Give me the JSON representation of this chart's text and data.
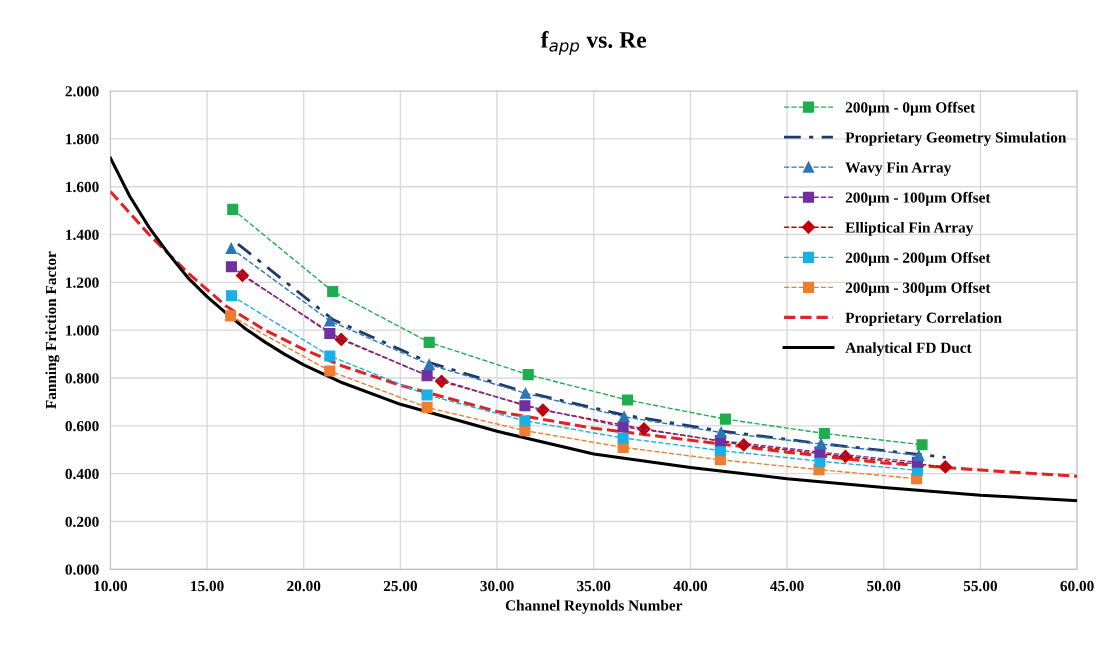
{
  "chart_data": {
    "type": "line",
    "title": "f$_{app}$ vs. Re",
    "xlabel": "Channel Reynolds Number",
    "ylabel": "Fanning Friction Factor",
    "xlim": [
      10,
      60
    ],
    "xticks": [
      {
        "value": 10,
        "label": "10.00"
      },
      {
        "value": 15,
        "label": "15.00"
      },
      {
        "value": 20,
        "label": "20.00"
      },
      {
        "value": 25,
        "label": "25.00"
      },
      {
        "value": 30,
        "label": "30.00"
      },
      {
        "value": 35,
        "label": "35.00"
      },
      {
        "value": 40,
        "label": "40.00"
      },
      {
        "value": 45,
        "label": "45.00"
      },
      {
        "value": 50,
        "label": "50.00"
      },
      {
        "value": 55,
        "label": "55.00"
      },
      {
        "value": 60,
        "label": "60.00"
      }
    ],
    "ylim": [
      0,
      2
    ],
    "yticks": [
      {
        "value": 0,
        "label": "0.000"
      },
      {
        "value": 0.2,
        "label": "0.200"
      },
      {
        "value": 0.4,
        "label": "0.400"
      },
      {
        "value": 0.6,
        "label": "0.600"
      },
      {
        "value": 0.8,
        "label": "0.800"
      },
      {
        "value": 1.0,
        "label": "1.000"
      },
      {
        "value": 1.2,
        "label": "1.200"
      },
      {
        "value": 1.4,
        "label": "1.400"
      },
      {
        "value": 1.6,
        "label": "1.600"
      },
      {
        "value": 1.8,
        "label": "1.800"
      },
      {
        "value": 2.0,
        "label": "2.000"
      }
    ],
    "grid": true,
    "legend": "top right",
    "series": [
      {
        "name": "200µm - 0µm Offset",
        "color": "#1fad4f",
        "marker": "square",
        "line_style": "dashed",
        "x": [
          16.33,
          21.5,
          26.49,
          31.61,
          36.75,
          41.81,
          46.93,
          51.98
        ],
        "values": [
          1.505,
          1.162,
          0.949,
          0.814,
          0.708,
          0.628,
          0.568,
          0.521
        ]
      },
      {
        "name": "Proprietary Geometry Simulation",
        "color": "#1f3864",
        "marker": "none",
        "line_style": "dashdot",
        "x": [
          16.6,
          21.5,
          26.5,
          31.5,
          36.6,
          41.6,
          46.8,
          53.2
        ],
        "values": [
          1.36,
          1.045,
          0.865,
          0.74,
          0.645,
          0.578,
          0.525,
          0.468
        ]
      },
      {
        "name": "Wavy Fin Array",
        "color": "#2e75b6",
        "marker": "triangle",
        "line_style": "dashed",
        "x": [
          16.25,
          21.35,
          26.49,
          31.47,
          36.57,
          41.59,
          46.76,
          51.81
        ],
        "values": [
          1.342,
          1.039,
          0.856,
          0.736,
          0.638,
          0.572,
          0.524,
          0.476
        ]
      },
      {
        "name": "200µm - 100µm Offset",
        "color": "#7030a0",
        "marker": "square",
        "line_style": "dashed",
        "x": [
          16.26,
          21.35,
          26.38,
          31.44,
          36.52,
          41.55,
          46.7,
          51.74
        ],
        "values": [
          1.265,
          0.986,
          0.81,
          0.684,
          0.596,
          0.538,
          0.49,
          0.448
        ]
      },
      {
        "name": "Elliptical Fin Array",
        "color": "#c00000",
        "marker": "diamond",
        "line_style": "dashed",
        "x": [
          16.83,
          21.94,
          27.13,
          32.37,
          37.6,
          42.76,
          48.02,
          53.19
        ],
        "values": [
          1.229,
          0.961,
          0.786,
          0.666,
          0.587,
          0.52,
          0.472,
          0.428
        ]
      },
      {
        "name": "200µm - 200µm Offset",
        "color": "#1aafe6",
        "marker": "square",
        "line_style": "dashed",
        "x": [
          16.27,
          21.35,
          26.38,
          31.44,
          36.52,
          41.55,
          46.7,
          51.74
        ],
        "values": [
          1.144,
          0.892,
          0.729,
          0.621,
          0.549,
          0.497,
          0.452,
          0.414
        ]
      },
      {
        "name": "200µm - 300µm Offset",
        "color": "#ed7d31",
        "marker": "square",
        "line_style": "dashed",
        "x": [
          16.22,
          21.35,
          26.38,
          31.44,
          36.52,
          41.55,
          46.65,
          51.7
        ],
        "values": [
          1.06,
          0.829,
          0.677,
          0.58,
          0.51,
          0.458,
          0.417,
          0.379
        ]
      },
      {
        "name": "Proprietary Correlation",
        "color": "#e32222",
        "marker": "none",
        "line_style": "dashed",
        "x": [
          10,
          12,
          14,
          16,
          18,
          20,
          22,
          25,
          30,
          35,
          40,
          45,
          50,
          55,
          60
        ],
        "values": [
          1.58,
          1.4,
          1.24,
          1.1,
          1.0,
          0.92,
          0.85,
          0.77,
          0.66,
          0.59,
          0.54,
          0.49,
          0.445,
          0.415,
          0.389
        ]
      },
      {
        "name": "Analytical FD Duct",
        "color": "#000000",
        "marker": "none",
        "line_style": "solid",
        "x": [
          10,
          11,
          12,
          13,
          14,
          15,
          16,
          17,
          18,
          19,
          20,
          22,
          25,
          30,
          35,
          40,
          45,
          50,
          55,
          60
        ],
        "values": [
          1.72,
          1.56,
          1.43,
          1.32,
          1.22,
          1.14,
          1.07,
          1.005,
          0.95,
          0.9,
          0.855,
          0.78,
          0.69,
          0.577,
          0.482,
          0.426,
          0.379,
          0.342,
          0.31,
          0.287
        ]
      }
    ]
  }
}
